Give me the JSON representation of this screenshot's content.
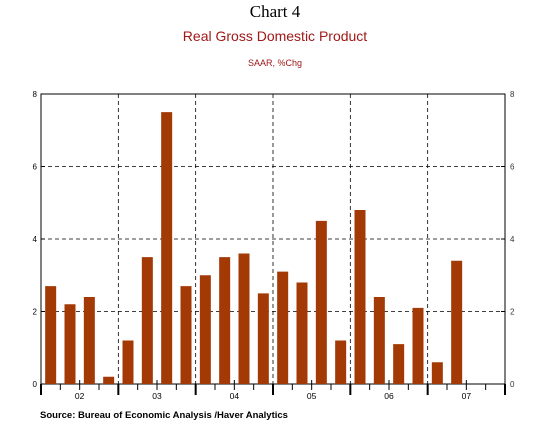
{
  "header": {
    "chart_label": "Chart 4",
    "title": "Real Gross Domestic Product",
    "subtitle": "SAAR, %Chg"
  },
  "footer": {
    "source": "Source:  Bureau of Economic Analysis /Haver Analytics"
  },
  "colors": {
    "bar": "#a33a06",
    "title": "#a01818",
    "grid": "#000000"
  },
  "chart_data": {
    "type": "bar",
    "title": "Real Gross Domestic Product",
    "subtitle": "SAAR, %Chg",
    "ylim": [
      0,
      8
    ],
    "yticks": [
      0,
      2,
      4,
      6,
      8
    ],
    "grid": "dashed, horizontal and at year boundaries",
    "legend": "none",
    "year_labels": [
      "02",
      "03",
      "04",
      "05",
      "06",
      "07"
    ],
    "categories": [
      "02Q1",
      "02Q2",
      "02Q3",
      "02Q4",
      "03Q1",
      "03Q2",
      "03Q3",
      "03Q4",
      "04Q1",
      "04Q2",
      "04Q3",
      "04Q4",
      "05Q1",
      "05Q2",
      "05Q3",
      "05Q4",
      "06Q1",
      "06Q2",
      "06Q3",
      "06Q4",
      "07Q1",
      "07Q2",
      "07Q3",
      "07Q4"
    ],
    "values": [
      2.7,
      2.2,
      2.4,
      0.2,
      1.2,
      3.5,
      7.5,
      2.7,
      3.0,
      3.5,
      3.6,
      2.5,
      3.1,
      2.8,
      4.5,
      1.2,
      4.8,
      2.4,
      1.1,
      2.1,
      0.6,
      3.4,
      null,
      null
    ]
  }
}
